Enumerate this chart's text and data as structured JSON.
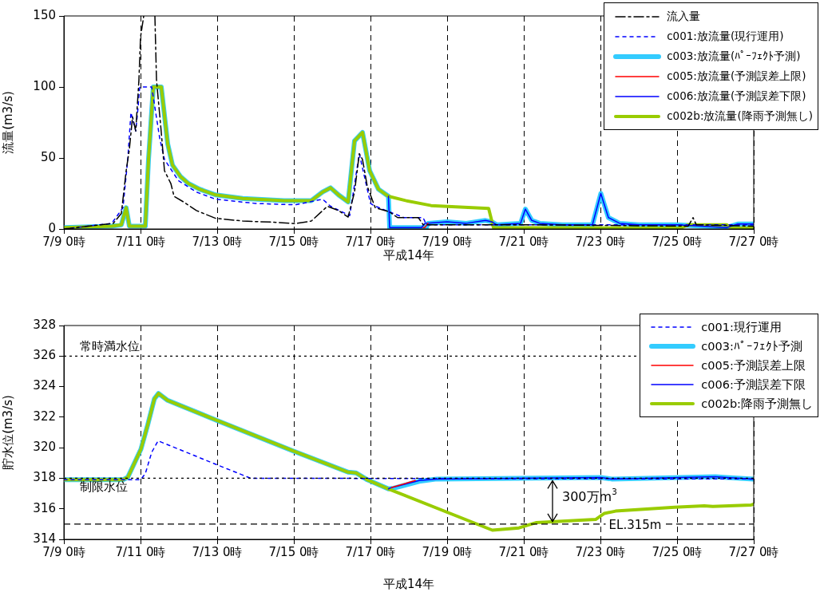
{
  "chart_data": [
    {
      "type": "line",
      "xlabel": "平成14年",
      "ylabel": "流量(m3/s)",
      "xlim": [
        "--07-09T00:00",
        "--07-27T00:00"
      ],
      "ylim": [
        0,
        150
      ],
      "xticks": [
        {
          "value": "--07-09T00:00",
          "label": "7/9 0時"
        },
        {
          "value": "--07-11T00:00",
          "label": "7/11 0時"
        },
        {
          "value": "--07-13T00:00",
          "label": "7/13 0時"
        },
        {
          "value": "--07-15T00:00",
          "label": "7/15 0時"
        },
        {
          "value": "--07-17T00:00",
          "label": "7/17 0時"
        },
        {
          "value": "--07-19T00:00",
          "label": "7/19 0時"
        },
        {
          "value": "--07-21T00:00",
          "label": "7/21 0時"
        },
        {
          "value": "--07-23T00:00",
          "label": "7/23 0時"
        },
        {
          "value": "--07-25T00:00",
          "label": "7/25 0時"
        },
        {
          "value": "--07-27T00:00",
          "label": "7/27 0時"
        }
      ],
      "yticks": [
        0,
        50,
        100,
        150
      ],
      "grid": "x",
      "legend": "top right",
      "marker": "none",
      "series": [
        {
          "name": "流入量",
          "color": "#000000",
          "line_style": "dashed",
          "x": [
            "--07-09T00:00",
            "--07-10T07:00",
            "--07-10T12:00",
            "--07-10T15:00",
            "--07-10T17:00",
            "--07-10T19:00",
            "--07-10T21:00",
            "--07-10T23:00",
            "--07-11T00:00",
            "--07-11T02:00",
            "--07-11T05:00",
            "--07-11T09:00",
            "--07-11T10:00",
            "--07-11T13:00",
            "--07-11T15:00",
            "--07-11T19:00",
            "--07-11T21:00",
            "--07-12T03:00",
            "--07-12T11:00",
            "--07-12T23:00",
            "--07-13T16:00",
            "--07-14T13:00",
            "--07-15T01:00",
            "--07-15T11:00",
            "--07-15T21:00",
            "--07-16T04:00",
            "--07-16T10:00",
            "--07-16T14:00",
            "--07-16T17:00",
            "--07-16T19:00",
            "--07-16T22:00",
            "--07-17T03:00",
            "--07-17T12:00",
            "--07-17T17:00",
            "--07-18T06:00",
            "--07-18T09:00",
            "--07-21T00:00",
            "--07-25T07:00",
            "--07-25T10:00",
            "--07-25T12:00",
            "--07-27T00:00"
          ],
          "values": [
            0,
            4,
            11,
            41,
            56,
            79,
            69,
            105,
            135,
            150,
            null,
            150,
            105,
            68,
            41,
            32,
            23,
            19,
            13,
            7.5,
            5.6,
            4.7,
            3.8,
            5.6,
            16,
            13,
            8.4,
            26,
            53,
            49,
            30,
            15,
            12,
            8,
            8,
            3,
            3,
            2,
            8,
            3,
            2
          ]
        },
        {
          "name": "c001:放流量(現行運用)",
          "color": "#0000ff",
          "line_style": "dotted",
          "x": [
            "--07-09T00:00",
            "--07-10T06:00",
            "--07-10T13:00",
            "--07-10T16:00",
            "--07-10T18:00",
            "--07-10T21:00",
            "--07-10T22:30",
            "--07-10T23:30",
            "--07-11T07:00",
            "--07-11T12:00",
            "--07-11T15:00",
            "--07-11T23:45",
            "--07-12T11:00",
            "--07-12T23:00",
            "--07-14T00:00",
            "--07-15T01:00",
            "--07-15T18:00",
            "--07-15T23:00",
            "--07-16T11:00",
            "--07-16T17:00",
            "--07-17T00:00",
            "--07-17T02:00",
            "--07-17T12:00",
            "--07-17T21:00",
            "--07-18T09:00",
            "--07-18T11:00",
            "--07-27T00:00"
          ],
          "values": [
            0,
            4,
            15,
            49,
            82,
            69,
            86,
            100,
            100,
            64,
            49,
            34,
            26,
            21,
            18,
            17,
            21,
            16,
            9.4,
            53,
            18,
            16.5,
            12,
            8,
            8,
            3,
            3
          ]
        },
        {
          "name": "c003:放流量(ﾊﾟｰﾌｪｸﾄ予測)",
          "color": "#33ccff",
          "line_style": "solid",
          "x": [
            "--07-09T00:00",
            "--07-10T06:00",
            "--07-10T12:00",
            "--07-10T15:00",
            "--07-10T17:00",
            "--07-11T03:00",
            "--07-11T05:00",
            "--07-11T08:00",
            "--07-11T13:00",
            "--07-11T17:00",
            "--07-11T20:00",
            "--07-12T01:00",
            "--07-12T06:00",
            "--07-12T13:00",
            "--07-12T23:00",
            "--07-13T16:00",
            "--07-14T18:00",
            "--07-15T11:00",
            "--07-15T18:00",
            "--07-15T23:00",
            "--07-16T04:00",
            "--07-16T10:00",
            "--07-16T14:00",
            "--07-16T19:00",
            "--07-16T23:30",
            "--07-17T05:00",
            "--07-17T11:15",
            "--07-17T12:00",
            "--07-18T11:00",
            "--07-18T12:00",
            "--07-19T00:00",
            "--07-19T12:00",
            "--07-20T00:00",
            "--07-20T04:00",
            "--07-20T07:00",
            "--07-20T22:00",
            "--07-21T01:00",
            "--07-21T05:00",
            "--07-21T10:00",
            "--07-22T00:00",
            "--07-22T19:00",
            "--07-23T00:15",
            "--07-23T05:00",
            "--07-23T12:00",
            "--07-24T00:00",
            "--07-25T00:00",
            "--07-26T07:00",
            "--07-26T14:00",
            "--07-27T00:00"
          ],
          "values": [
            1,
            2,
            3,
            15,
            2,
            2,
            49,
            100,
            100,
            60,
            45,
            37,
            32,
            28,
            24,
            21.5,
            20,
            20,
            26,
            29,
            24,
            19,
            62,
            68,
            41,
            28,
            23,
            1,
            1,
            4,
            5,
            4,
            6,
            5,
            3,
            4,
            14,
            6,
            4,
            3,
            3,
            25,
            8,
            4,
            3,
            3,
            1,
            3.5,
            3.5
          ]
        },
        {
          "name": "c005:放流量(予測誤差上限)",
          "color": "#ff0000",
          "line_style": "solid",
          "x": [
            "--07-18T09:00",
            "--07-18T10:00",
            "--07-18T12:00"
          ],
          "values": [
            1,
            1,
            4
          ]
        },
        {
          "name": "c006:放流量(予測誤差下限)",
          "color": "#0000ff",
          "line_style": "solid",
          "x": [
            "--07-17T11:15",
            "--07-17T12:00",
            "--07-18T08:00",
            "--07-18T10:00",
            "--07-19T00:00",
            "--07-19T12:00",
            "--07-20T00:00",
            "--07-20T04:00",
            "--07-20T07:00",
            "--07-20T22:00",
            "--07-21T01:00",
            "--07-21T05:00",
            "--07-21T10:00",
            "--07-22T00:00",
            "--07-22T19:00",
            "--07-23T00:15",
            "--07-23T05:00",
            "--07-23T12:00",
            "--07-24T00:00",
            "--07-25T00:00",
            "--07-26T07:00",
            "--07-26T14:00",
            "--07-27T00:00"
          ],
          "values": [
            23,
            1,
            1,
            4,
            5,
            4,
            6,
            5,
            3,
            4,
            14,
            6,
            4,
            3,
            3,
            25,
            8,
            4,
            3,
            3,
            1,
            3.5,
            3.5
          ]
        },
        {
          "name": "c002b:放流量(降雨予測無し)",
          "color": "#99cc00",
          "line_style": "solid",
          "x": [
            "--07-09T00:00",
            "--07-10T06:00",
            "--07-10T12:00",
            "--07-10T15:00",
            "--07-10T17:00",
            "--07-11T03:00",
            "--07-11T05:00",
            "--07-11T08:00",
            "--07-11T13:00",
            "--07-11T17:00",
            "--07-11T20:00",
            "--07-12T01:00",
            "--07-12T06:00",
            "--07-12T13:00",
            "--07-12T23:00",
            "--07-13T16:00",
            "--07-14T18:00",
            "--07-15T11:00",
            "--07-15T18:00",
            "--07-15T23:00",
            "--07-16T04:00",
            "--07-16T10:00",
            "--07-16T14:00",
            "--07-16T19:00",
            "--07-16T23:30",
            "--07-17T05:00",
            "--07-17T11:15",
            "--07-17T22:00",
            "--07-18T14:00",
            "--07-20T02:00",
            "--07-20T05:00",
            "--07-25T02:00",
            "--07-25T07:00",
            "--07-26T07:00",
            "--07-26T10:00",
            "--07-27T00:00"
          ],
          "values": [
            1,
            2,
            3,
            15,
            2,
            2,
            49,
            100,
            100,
            60,
            45,
            37,
            32,
            28,
            24,
            21.5,
            20,
            20,
            26,
            29,
            24,
            19,
            62,
            68,
            41,
            28,
            23,
            20,
            16.5,
            14.5,
            1,
            0.5,
            3,
            3,
            0.5,
            0.5
          ]
        }
      ]
    },
    {
      "type": "line",
      "xlabel": "平成14年",
      "ylabel": "貯水位(m3/s)",
      "xlim": [
        "--07-09T00:00",
        "--07-27T00:00"
      ],
      "ylim": [
        314,
        328
      ],
      "xticks": [
        {
          "value": "--07-09T00:00",
          "label": "7/9 0時"
        },
        {
          "value": "--07-11T00:00",
          "label": "7/11 0時"
        },
        {
          "value": "--07-13T00:00",
          "label": "7/13 0時"
        },
        {
          "value": "--07-15T00:00",
          "label": "7/15 0時"
        },
        {
          "value": "--07-17T00:00",
          "label": "7/17 0時"
        },
        {
          "value": "--07-19T00:00",
          "label": "7/19 0時"
        },
        {
          "value": "--07-21T00:00",
          "label": "7/21 0時"
        },
        {
          "value": "--07-23T00:00",
          "label": "7/23 0時"
        },
        {
          "value": "--07-25T00:00",
          "label": "7/25 0時"
        },
        {
          "value": "--07-27T00:00",
          "label": "7/27 0時"
        }
      ],
      "yticks": [
        314,
        316,
        318,
        320,
        322,
        324,
        326,
        328
      ],
      "grid": "x",
      "legend": "top right",
      "marker": "none",
      "ref_lines": [
        {
          "axis": "y",
          "value": 326,
          "label": "常時満水位",
          "color": "#000000",
          "line_style": "dotted"
        },
        {
          "axis": "y",
          "value": 318,
          "label": "制限水位",
          "color": "#000000",
          "line_style": "dotted"
        },
        {
          "axis": "y",
          "value": 315,
          "label": "EL.315m",
          "color": "#000000",
          "line_style": "dashed"
        }
      ],
      "annotations": [
        {
          "text": "300万m$^{3}$",
          "x": "--07-21T18:00",
          "y": 318
        }
      ],
      "series": [
        {
          "name": "c001:現行運用",
          "color": "#0000ff",
          "line_style": "dotted",
          "x": [
            "--07-09T00:00",
            "--07-11T00:00",
            "--07-11T03:00",
            "--07-11T07:00",
            "--07-11T11:00",
            "--07-12T23:30",
            "--07-13T21:00",
            "--07-27T00:00"
          ],
          "values": [
            317.9,
            317.9,
            318.3,
            319.7,
            320.45,
            318.9,
            318,
            317.95
          ]
        },
        {
          "name": "c003:ﾊﾟｰﾌｪｸﾄ予測",
          "color": "#33ccff",
          "line_style": "solid",
          "x": [
            "--07-09T00:00",
            "--07-10T13:00",
            "--07-10T16:00",
            "--07-11T00:15",
            "--07-11T04:30",
            "--07-11T08:40",
            "--07-11T11:15",
            "--07-11T17:00",
            "--07-12T23:30",
            "--07-14T23:15",
            "--07-16T10:00",
            "--07-16T15:00",
            "--07-16T22:00",
            "--07-17T11:15",
            "--07-17T14:30",
            "--07-18T06:30",
            "--07-18T17:30",
            "--07-23T00:00",
            "--07-23T07:00",
            "--07-26T00:00",
            "--07-26T07:00",
            "--07-27T00:00"
          ],
          "values": [
            317.9,
            317.9,
            318.06,
            319.9,
            321.5,
            323.2,
            323.55,
            323.1,
            321.8,
            319.8,
            318.4,
            318.35,
            317.9,
            317.3,
            317.35,
            317.8,
            317.95,
            318.05,
            317.95,
            318.1,
            318.05,
            317.95
          ]
        },
        {
          "name": "c005:予測誤差上限",
          "color": "#ff0000",
          "line_style": "solid",
          "x": [
            "--07-17T13:15",
            "--07-18T04:00"
          ],
          "values": [
            317.4,
            317.85
          ]
        },
        {
          "name": "c006:予測誤差下限",
          "color": "#0000ff",
          "line_style": "solid",
          "x": [
            "--07-17T11:15",
            "--07-17T12:00",
            "--07-18T06:30",
            "--07-18T17:30",
            "--07-23T00:00",
            "--07-23T07:00",
            "--07-26T00:00",
            "--07-26T07:00",
            "--07-27T00:00"
          ],
          "values": [
            317.3,
            317.35,
            317.85,
            317.95,
            318.05,
            317.95,
            318.1,
            318.05,
            317.95
          ]
        },
        {
          "name": "c002b:降雨予測無し",
          "color": "#99cc00",
          "line_style": "solid",
          "x": [
            "--07-09T00:00",
            "--07-10T13:00",
            "--07-10T16:00",
            "--07-11T00:15",
            "--07-11T04:30",
            "--07-11T08:40",
            "--07-11T11:15",
            "--07-11T17:00",
            "--07-12T23:30",
            "--07-14T23:15",
            "--07-16T10:00",
            "--07-16T15:00",
            "--07-16T22:00",
            "--07-17T11:15",
            "--07-20T04:20",
            "--07-20T21:00",
            "--07-21T08:00",
            "--07-22T21:00",
            "--07-23T02:30",
            "--07-23T09:30",
            "--07-24T22:30",
            "--07-25T17:00",
            "--07-25T22:20",
            "--07-26T22:20",
            "--07-27T00:00"
          ],
          "values": [
            317.9,
            317.9,
            318.06,
            319.9,
            321.5,
            323.2,
            323.55,
            323.1,
            321.8,
            319.8,
            318.4,
            318.35,
            317.9,
            317.3,
            314.6,
            314.75,
            315.1,
            315.3,
            315.7,
            315.85,
            316.1,
            316.2,
            316.15,
            316.25,
            316.3
          ]
        }
      ]
    }
  ]
}
